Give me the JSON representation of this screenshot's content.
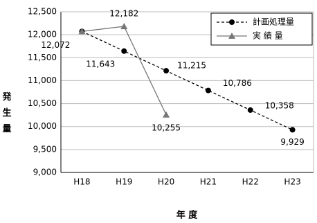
{
  "chart_data": {
    "type": "line",
    "xlabel": "年 度",
    "ylabel": "発 生 量",
    "categories": [
      "H18",
      "H19",
      "H20",
      "H21",
      "H22",
      "H23"
    ],
    "series": [
      {
        "name": "計画処理量",
        "color": "#000000",
        "line_style": "dashed",
        "marker": "circle",
        "values": [
          12072,
          11643,
          11215,
          10786,
          10358,
          9929
        ],
        "value_labels": [
          "12,072",
          "11,643",
          "11,215",
          "10,786",
          "10,358",
          "9,929"
        ]
      },
      {
        "name": "実 績 量",
        "color": "#777777",
        "line_style": "solid",
        "marker": "triangle",
        "values": [
          12072,
          12182,
          10255,
          null,
          null,
          null
        ],
        "value_labels": [
          null,
          "12,182",
          "10,255",
          null,
          null,
          null
        ]
      }
    ],
    "ylim": [
      9000,
      12500
    ],
    "yticks": [
      {
        "value": 9000,
        "label": "9,000"
      },
      {
        "value": 9500,
        "label": "9,500"
      },
      {
        "value": 10000,
        "label": "10,000"
      },
      {
        "value": 10500,
        "label": "10,500"
      },
      {
        "value": 11000,
        "label": "11,000"
      },
      {
        "value": 11500,
        "label": "11,500"
      },
      {
        "value": 12000,
        "label": "12,000"
      },
      {
        "value": 12500,
        "label": "12,500"
      }
    ],
    "grid": true,
    "legend": "upper right"
  }
}
